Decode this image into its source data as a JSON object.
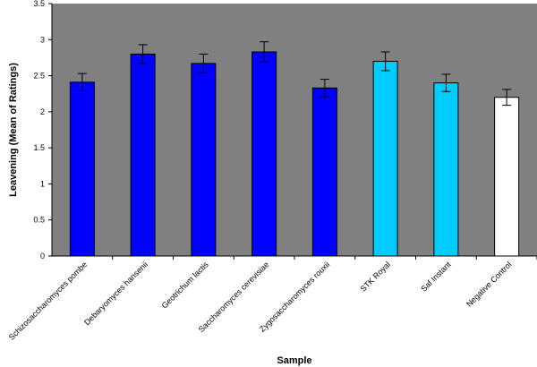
{
  "chart_data": {
    "type": "bar",
    "title": "",
    "xlabel": "Sample",
    "ylabel": "Leavening (Mean of Ratings)",
    "ylim": [
      0,
      3.5
    ],
    "yticks": [
      "0",
      "0.5",
      "1",
      "1.5",
      "2",
      "2.5",
      "3",
      "3.5"
    ],
    "grid": false,
    "plot_background": "#808080",
    "categories": [
      "Schizosaccharomyces pombe",
      "Debaryomyces hansenii",
      "Geotrichum lactis",
      "Saccharomyces cerevisiae",
      "Zygosaccharomyces rouxii",
      "STK Royal",
      "Saf Instant",
      "Negative Control"
    ],
    "values": [
      2.41,
      2.8,
      2.67,
      2.83,
      2.33,
      2.7,
      2.4,
      2.2
    ],
    "errors": [
      0.12,
      0.13,
      0.13,
      0.14,
      0.12,
      0.13,
      0.12,
      0.11
    ],
    "colors": [
      "#0000ff",
      "#0000ff",
      "#0000ff",
      "#0000ff",
      "#0000ff",
      "#00ccff",
      "#00ccff",
      "#ffffff"
    ]
  }
}
